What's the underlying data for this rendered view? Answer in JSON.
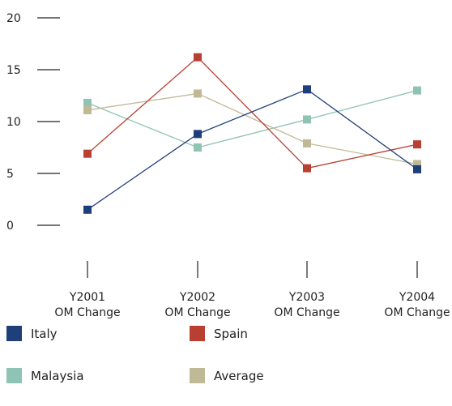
{
  "chart_data": {
    "type": "line",
    "categories": [
      [
        "Y2001",
        "OM Change"
      ],
      [
        "Y2002",
        "OM Change"
      ],
      [
        "Y2003",
        "OM Change"
      ],
      [
        "Y2004",
        "OM Change"
      ]
    ],
    "ylim": [
      0,
      20
    ],
    "yticks": [
      "0",
      "5",
      "10",
      "15",
      "20"
    ],
    "series": [
      {
        "name": "Italy",
        "color": "#1f3f7a",
        "values": [
          1.5,
          8.8,
          13.1,
          5.4
        ]
      },
      {
        "name": "Spain",
        "color": "#b84032",
        "values": [
          6.9,
          16.2,
          5.5,
          7.8
        ]
      },
      {
        "name": "Malaysia",
        "color": "#8fc3b3",
        "values": [
          11.8,
          7.5,
          10.2,
          13.0
        ]
      },
      {
        "name": "Average",
        "color": "#c0b996",
        "values": [
          11.1,
          12.7,
          7.9,
          5.9
        ]
      }
    ],
    "grid": false,
    "legend_position": "bottom"
  }
}
